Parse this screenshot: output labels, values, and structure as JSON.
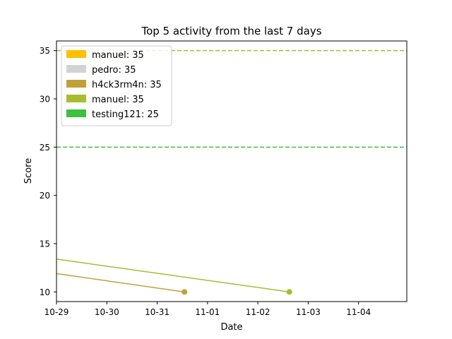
{
  "chart_data": {
    "type": "line",
    "title": "Top 5 activity from the last 7 days",
    "xlabel": "Date",
    "ylabel": "Score",
    "x_axis_kind": "date",
    "xlim": [
      "2022-10-29T00:00",
      "2022-11-04T23:00"
    ],
    "ylim": [
      9.0,
      36.0
    ],
    "x_ticks": [
      {
        "date": "2022-10-29",
        "label": "10-29"
      },
      {
        "date": "2022-10-30",
        "label": "10-30"
      },
      {
        "date": "2022-10-31",
        "label": "10-31"
      },
      {
        "date": "2022-11-01",
        "label": "11-01"
      },
      {
        "date": "2022-11-02",
        "label": "11-02"
      },
      {
        "date": "2022-11-03",
        "label": "11-03"
      },
      {
        "date": "2022-11-04",
        "label": "11-04"
      }
    ],
    "y_ticks": [
      10,
      15,
      20,
      25,
      30,
      35
    ],
    "grid": false,
    "legend_position": "top-left",
    "legend": [
      {
        "label": "manuel: 35",
        "color": "#ffc000"
      },
      {
        "label": "pedro: 35",
        "color": "#d3d3d3"
      },
      {
        "label": "h4ck3rm4n: 35",
        "color": "#c0a038"
      },
      {
        "label": "manuel: 35",
        "color": "#a8bc32"
      },
      {
        "label": "testing121: 25",
        "color": "#3ec03e"
      }
    ],
    "reference_lines": [
      {
        "y": 35,
        "color": "#a8bc32",
        "style": "dashed"
      },
      {
        "y": 25,
        "color": "#3ec03e",
        "style": "dashed"
      }
    ],
    "series": [
      {
        "color": "#c0a038",
        "points": [
          {
            "x": "2022-10-29T00:00",
            "y": 11.9
          },
          {
            "x": "2022-10-31T13:00",
            "y": 10.0,
            "marker": true
          }
        ]
      },
      {
        "color": "#a8bc32",
        "points": [
          {
            "x": "2022-10-29T00:00",
            "y": 13.4
          },
          {
            "x": "2022-11-02T15:00",
            "y": 10.0,
            "marker": true
          }
        ]
      }
    ]
  }
}
